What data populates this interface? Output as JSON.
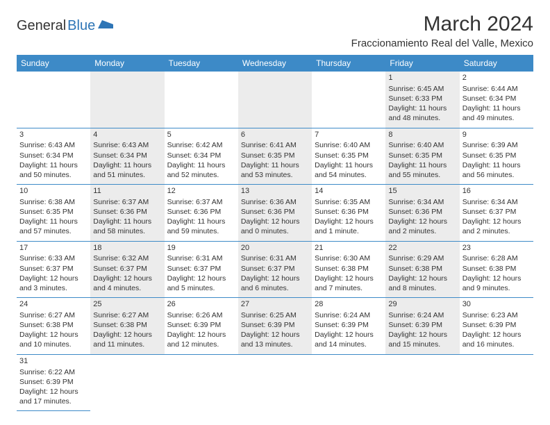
{
  "logo": {
    "part1": "General",
    "part2": "Blue"
  },
  "title": "March 2024",
  "location": "Fraccionamiento Real del Valle, Mexico",
  "colors": {
    "header_bg": "#3d8ac7",
    "header_text": "#ffffff",
    "alt_cell_bg": "#ececec",
    "text": "#333333",
    "border": "#3d8ac7",
    "logo_accent": "#2e75b6"
  },
  "day_names": [
    "Sunday",
    "Monday",
    "Tuesday",
    "Wednesday",
    "Thursday",
    "Friday",
    "Saturday"
  ],
  "weeks": [
    [
      {
        "day": "",
        "lines": []
      },
      {
        "day": "",
        "lines": []
      },
      {
        "day": "",
        "lines": []
      },
      {
        "day": "",
        "lines": []
      },
      {
        "day": "",
        "lines": []
      },
      {
        "day": "1",
        "lines": [
          "Sunrise: 6:45 AM",
          "Sunset: 6:33 PM",
          "Daylight: 11 hours and 48 minutes."
        ]
      },
      {
        "day": "2",
        "lines": [
          "Sunrise: 6:44 AM",
          "Sunset: 6:34 PM",
          "Daylight: 11 hours and 49 minutes."
        ]
      }
    ],
    [
      {
        "day": "3",
        "lines": [
          "Sunrise: 6:43 AM",
          "Sunset: 6:34 PM",
          "Daylight: 11 hours and 50 minutes."
        ]
      },
      {
        "day": "4",
        "lines": [
          "Sunrise: 6:43 AM",
          "Sunset: 6:34 PM",
          "Daylight: 11 hours and 51 minutes."
        ]
      },
      {
        "day": "5",
        "lines": [
          "Sunrise: 6:42 AM",
          "Sunset: 6:34 PM",
          "Daylight: 11 hours and 52 minutes."
        ]
      },
      {
        "day": "6",
        "lines": [
          "Sunrise: 6:41 AM",
          "Sunset: 6:35 PM",
          "Daylight: 11 hours and 53 minutes."
        ]
      },
      {
        "day": "7",
        "lines": [
          "Sunrise: 6:40 AM",
          "Sunset: 6:35 PM",
          "Daylight: 11 hours and 54 minutes."
        ]
      },
      {
        "day": "8",
        "lines": [
          "Sunrise: 6:40 AM",
          "Sunset: 6:35 PM",
          "Daylight: 11 hours and 55 minutes."
        ]
      },
      {
        "day": "9",
        "lines": [
          "Sunrise: 6:39 AM",
          "Sunset: 6:35 PM",
          "Daylight: 11 hours and 56 minutes."
        ]
      }
    ],
    [
      {
        "day": "10",
        "lines": [
          "Sunrise: 6:38 AM",
          "Sunset: 6:35 PM",
          "Daylight: 11 hours and 57 minutes."
        ]
      },
      {
        "day": "11",
        "lines": [
          "Sunrise: 6:37 AM",
          "Sunset: 6:36 PM",
          "Daylight: 11 hours and 58 minutes."
        ]
      },
      {
        "day": "12",
        "lines": [
          "Sunrise: 6:37 AM",
          "Sunset: 6:36 PM",
          "Daylight: 11 hours and 59 minutes."
        ]
      },
      {
        "day": "13",
        "lines": [
          "Sunrise: 6:36 AM",
          "Sunset: 6:36 PM",
          "Daylight: 12 hours and 0 minutes."
        ]
      },
      {
        "day": "14",
        "lines": [
          "Sunrise: 6:35 AM",
          "Sunset: 6:36 PM",
          "Daylight: 12 hours and 1 minute."
        ]
      },
      {
        "day": "15",
        "lines": [
          "Sunrise: 6:34 AM",
          "Sunset: 6:36 PM",
          "Daylight: 12 hours and 2 minutes."
        ]
      },
      {
        "day": "16",
        "lines": [
          "Sunrise: 6:34 AM",
          "Sunset: 6:37 PM",
          "Daylight: 12 hours and 2 minutes."
        ]
      }
    ],
    [
      {
        "day": "17",
        "lines": [
          "Sunrise: 6:33 AM",
          "Sunset: 6:37 PM",
          "Daylight: 12 hours and 3 minutes."
        ]
      },
      {
        "day": "18",
        "lines": [
          "Sunrise: 6:32 AM",
          "Sunset: 6:37 PM",
          "Daylight: 12 hours and 4 minutes."
        ]
      },
      {
        "day": "19",
        "lines": [
          "Sunrise: 6:31 AM",
          "Sunset: 6:37 PM",
          "Daylight: 12 hours and 5 minutes."
        ]
      },
      {
        "day": "20",
        "lines": [
          "Sunrise: 6:31 AM",
          "Sunset: 6:37 PM",
          "Daylight: 12 hours and 6 minutes."
        ]
      },
      {
        "day": "21",
        "lines": [
          "Sunrise: 6:30 AM",
          "Sunset: 6:38 PM",
          "Daylight: 12 hours and 7 minutes."
        ]
      },
      {
        "day": "22",
        "lines": [
          "Sunrise: 6:29 AM",
          "Sunset: 6:38 PM",
          "Daylight: 12 hours and 8 minutes."
        ]
      },
      {
        "day": "23",
        "lines": [
          "Sunrise: 6:28 AM",
          "Sunset: 6:38 PM",
          "Daylight: 12 hours and 9 minutes."
        ]
      }
    ],
    [
      {
        "day": "24",
        "lines": [
          "Sunrise: 6:27 AM",
          "Sunset: 6:38 PM",
          "Daylight: 12 hours and 10 minutes."
        ]
      },
      {
        "day": "25",
        "lines": [
          "Sunrise: 6:27 AM",
          "Sunset: 6:38 PM",
          "Daylight: 12 hours and 11 minutes."
        ]
      },
      {
        "day": "26",
        "lines": [
          "Sunrise: 6:26 AM",
          "Sunset: 6:39 PM",
          "Daylight: 12 hours and 12 minutes."
        ]
      },
      {
        "day": "27",
        "lines": [
          "Sunrise: 6:25 AM",
          "Sunset: 6:39 PM",
          "Daylight: 12 hours and 13 minutes."
        ]
      },
      {
        "day": "28",
        "lines": [
          "Sunrise: 6:24 AM",
          "Sunset: 6:39 PM",
          "Daylight: 12 hours and 14 minutes."
        ]
      },
      {
        "day": "29",
        "lines": [
          "Sunrise: 6:24 AM",
          "Sunset: 6:39 PM",
          "Daylight: 12 hours and 15 minutes."
        ]
      },
      {
        "day": "30",
        "lines": [
          "Sunrise: 6:23 AM",
          "Sunset: 6:39 PM",
          "Daylight: 12 hours and 16 minutes."
        ]
      }
    ],
    [
      {
        "day": "31",
        "lines": [
          "Sunrise: 6:22 AM",
          "Sunset: 6:39 PM",
          "Daylight: 12 hours and 17 minutes."
        ]
      }
    ]
  ]
}
